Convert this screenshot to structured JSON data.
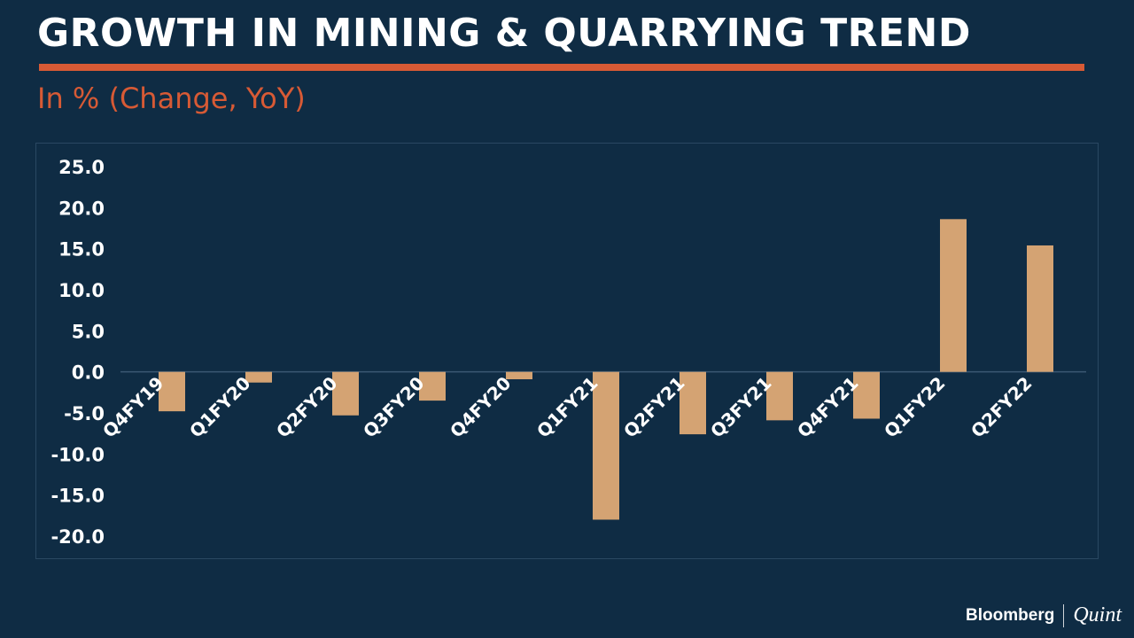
{
  "header": {
    "title": "GROWTH IN MINING & QUARRYING TREND",
    "subtitle": "In % (Change, YoY)"
  },
  "branding": {
    "name": "Bloomberg",
    "partner": "Quint"
  },
  "colors": {
    "background": "#0f2c44",
    "accent": "#d75a35",
    "bar": "#d4a373",
    "text": "#ffffff"
  },
  "chart_data": {
    "type": "bar",
    "categories": [
      "Q4FY19",
      "Q1FY20",
      "Q2FY20",
      "Q3FY20",
      "Q4FY20",
      "Q1FY21",
      "Q2FY21",
      "Q3FY21",
      "Q4FY21",
      "Q1FY22",
      "Q2FY22"
    ],
    "values": [
      -4.8,
      -1.3,
      -5.3,
      -3.5,
      -0.9,
      -18.0,
      -7.6,
      -5.9,
      -5.7,
      18.6,
      15.4
    ],
    "ylim": [
      -20,
      25
    ],
    "yticks": [
      "25.0",
      "20.0",
      "15.0",
      "10.0",
      "5.0",
      "0.0",
      "-5.0",
      "-10.0",
      "-15.0",
      "-20.0"
    ],
    "grid": false,
    "legend": "none"
  }
}
